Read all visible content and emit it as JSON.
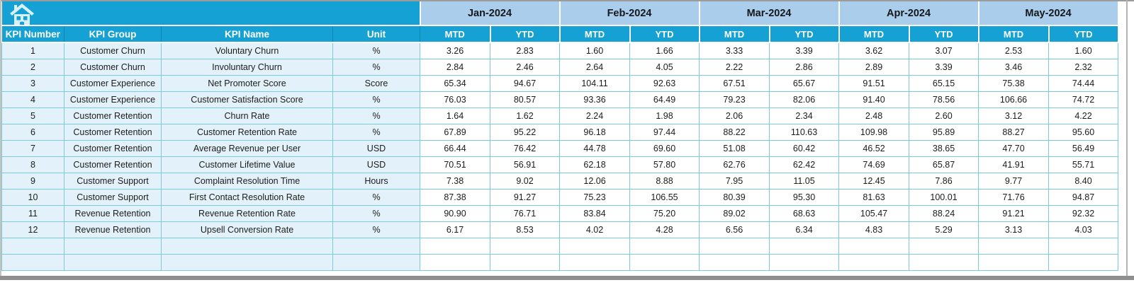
{
  "colors": {
    "header_cyan": "#16a1d5",
    "month_blue": "#a9cdea",
    "row_blue": "#e3f2fa",
    "border_teal": "#7bccdb",
    "window_gray": "#8f8f8f"
  },
  "table": {
    "months": [
      "Jan-2024",
      "Feb-2024",
      "Mar-2024",
      "Apr-2024",
      "May-2024"
    ],
    "sub_headers": [
      "MTD",
      "YTD"
    ],
    "left_headers": [
      "KPI Number",
      "KPI Group",
      "KPI Name",
      "Unit"
    ],
    "empty_row_count": 2,
    "rows": [
      {
        "number": "1",
        "group": "Customer Churn",
        "name": "Voluntary Churn",
        "unit": "%",
        "values": [
          "3.26",
          "2.83",
          "1.60",
          "1.66",
          "3.33",
          "3.39",
          "3.62",
          "3.07",
          "2.53",
          "1.60"
        ]
      },
      {
        "number": "2",
        "group": "Customer Churn",
        "name": "Involuntary Churn",
        "unit": "%",
        "values": [
          "2.84",
          "2.46",
          "2.64",
          "4.05",
          "2.22",
          "2.86",
          "2.89",
          "3.39",
          "3.46",
          "2.32"
        ]
      },
      {
        "number": "3",
        "group": "Customer Experience",
        "name": "Net Promoter Score",
        "unit": "Score",
        "values": [
          "65.34",
          "94.67",
          "104.11",
          "92.63",
          "67.51",
          "65.67",
          "91.51",
          "65.15",
          "75.38",
          "74.44"
        ]
      },
      {
        "number": "4",
        "group": "Customer Experience",
        "name": "Customer Satisfaction Score",
        "unit": "%",
        "values": [
          "76.03",
          "80.57",
          "93.36",
          "64.49",
          "79.23",
          "82.06",
          "91.40",
          "78.56",
          "106.66",
          "74.72"
        ]
      },
      {
        "number": "5",
        "group": "Customer Retention",
        "name": "Churn Rate",
        "unit": "%",
        "values": [
          "1.64",
          "1.62",
          "2.24",
          "1.98",
          "2.06",
          "2.34",
          "2.48",
          "2.60",
          "3.12",
          "4.22"
        ]
      },
      {
        "number": "6",
        "group": "Customer Retention",
        "name": "Customer Retention Rate",
        "unit": "%",
        "values": [
          "67.89",
          "95.22",
          "96.18",
          "97.44",
          "88.22",
          "110.63",
          "109.98",
          "95.89",
          "88.27",
          "95.60"
        ]
      },
      {
        "number": "7",
        "group": "Customer Retention",
        "name": "Average Revenue per User",
        "unit": "USD",
        "values": [
          "66.44",
          "76.42",
          "44.78",
          "69.60",
          "51.08",
          "60.42",
          "46.52",
          "38.65",
          "47.70",
          "56.49"
        ]
      },
      {
        "number": "8",
        "group": "Customer Retention",
        "name": "Customer Lifetime Value",
        "unit": "USD",
        "values": [
          "70.51",
          "56.91",
          "62.18",
          "57.80",
          "62.76",
          "62.42",
          "74.69",
          "65.87",
          "41.91",
          "55.71"
        ]
      },
      {
        "number": "9",
        "group": "Customer Support",
        "name": "Complaint Resolution Time",
        "unit": "Hours",
        "values": [
          "7.38",
          "9.02",
          "12.06",
          "8.88",
          "7.95",
          "11.05",
          "12.45",
          "7.86",
          "9.77",
          "8.40"
        ]
      },
      {
        "number": "10",
        "group": "Customer Support",
        "name": "First Contact Resolution Rate",
        "unit": "%",
        "values": [
          "87.38",
          "91.27",
          "75.23",
          "106.55",
          "80.39",
          "95.30",
          "81.63",
          "100.01",
          "71.76",
          "94.87"
        ]
      },
      {
        "number": "11",
        "group": "Revenue Retention",
        "name": "Revenue Retention Rate",
        "unit": "%",
        "values": [
          "90.90",
          "76.71",
          "83.84",
          "75.20",
          "89.02",
          "68.63",
          "105.47",
          "88.24",
          "91.21",
          "92.32"
        ]
      },
      {
        "number": "12",
        "group": "Revenue Retention",
        "name": "Upsell Conversion Rate",
        "unit": "%",
        "values": [
          "6.17",
          "8.53",
          "4.02",
          "4.28",
          "6.56",
          "6.34",
          "4.83",
          "5.29",
          "3.13",
          "4.03"
        ]
      }
    ]
  }
}
